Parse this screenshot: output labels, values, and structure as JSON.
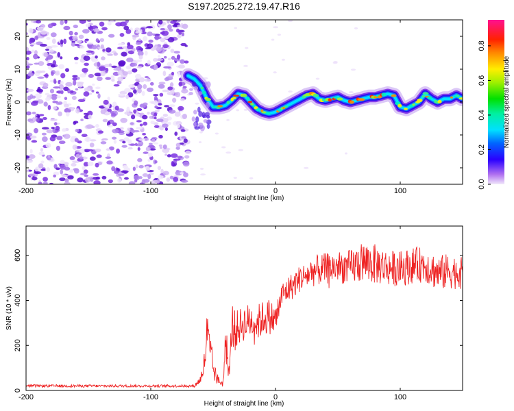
{
  "title": "S197.2025.272.19.47.R16",
  "colors": {
    "snr_line": "#ee2222",
    "noise_purple": "#7a22e0",
    "noise_light": "#c9a6f2"
  },
  "chart_data": [
    {
      "type": "heatmap",
      "name": "spectrogram",
      "xlabel": "Height of straight line (km)",
      "ylabel": "Frequency (Hz)",
      "xlim": [
        -200,
        150
      ],
      "ylim": [
        -25,
        25
      ],
      "xticks": [
        -200,
        -100,
        0,
        100
      ],
      "yticks": [
        -20,
        -10,
        0,
        10,
        20
      ],
      "noise_region_x": [
        -200,
        -70
      ],
      "ridge": {
        "x": [
          -70,
          -65,
          -60,
          -55,
          -50,
          -45,
          -40,
          -35,
          -30,
          -25,
          -20,
          -15,
          -10,
          -5,
          0,
          5,
          10,
          15,
          20,
          25,
          30,
          35,
          40,
          45,
          50,
          55,
          60,
          65,
          70,
          75,
          80,
          85,
          90,
          95,
          100,
          105,
          110,
          115,
          120,
          125,
          130,
          135,
          140,
          145,
          150
        ],
        "y": [
          8,
          7,
          5,
          1,
          -1.5,
          -1.5,
          -1,
          0.5,
          2.5,
          2,
          0,
          -2,
          -3,
          -3.5,
          -3,
          -2,
          -1,
          0,
          1,
          2,
          2.5,
          1,
          0.5,
          1,
          1.5,
          0.5,
          0,
          0.5,
          1,
          1.5,
          1.5,
          2,
          2.5,
          2,
          -1.5,
          -2,
          -1,
          0,
          2.5,
          1,
          0,
          1,
          1,
          2,
          1
        ]
      },
      "colorbar": {
        "label": "Normalized spectral amplitude",
        "min": 0.0,
        "max": 0.95,
        "ticks": [
          "0.0",
          "0.2",
          "0.4",
          "0.6",
          "0.8"
        ],
        "tick_values": [
          0.0,
          0.2,
          0.4,
          0.6,
          0.8
        ]
      }
    },
    {
      "type": "line",
      "name": "snr",
      "xlabel": "Height of straight line (km)",
      "ylabel": "SNR (10 * v/v)",
      "xlim": [
        -200,
        150
      ],
      "ylim": [
        0,
        730
      ],
      "xticks": [
        -200,
        -100,
        0,
        100
      ],
      "yticks": [
        0,
        200,
        400,
        600
      ],
      "series": [
        {
          "name": "SNR",
          "x": [
            -200,
            -150,
            -100,
            -65,
            -60,
            -57,
            -55,
            -53,
            -50,
            -48,
            -45,
            -42,
            -40,
            -37,
            -35,
            -32,
            -30,
            -25,
            -20,
            -15,
            -10,
            -5,
            0,
            5,
            10,
            15,
            20,
            25,
            30,
            40,
            50,
            60,
            70,
            80,
            90,
            100,
            110,
            120,
            130,
            140,
            150
          ],
          "y": [
            20,
            20,
            20,
            20,
            50,
            120,
            250,
            180,
            100,
            60,
            40,
            30,
            220,
            60,
            300,
            260,
            280,
            300,
            310,
            300,
            320,
            330,
            310,
            420,
            450,
            470,
            500,
            510,
            530,
            540,
            550,
            545,
            570,
            560,
            545,
            540,
            555,
            560,
            520,
            530,
            520
          ]
        }
      ],
      "y_noise_amplitude": [
        6,
        6,
        6,
        6,
        20,
        60,
        120,
        100,
        60,
        30,
        20,
        15,
        90,
        30,
        100,
        90,
        80,
        80,
        80,
        80,
        80,
        80,
        70,
        60,
        60,
        60,
        60,
        60,
        70,
        70,
        70,
        80,
        90,
        90,
        80,
        80,
        80,
        80,
        80,
        80,
        70
      ]
    }
  ]
}
